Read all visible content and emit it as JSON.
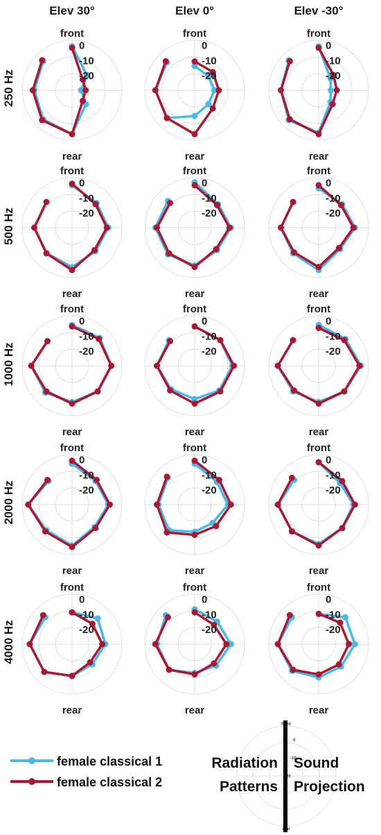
{
  "columns": [
    "Elev 30°",
    "Elev 0°",
    "Elev -30°"
  ],
  "rows": [
    "250 Hz",
    "500 Hz",
    "1000 Hz",
    "2000 Hz",
    "4000 Hz"
  ],
  "polar_labels": {
    "front": "front",
    "rear": "rear"
  },
  "ring_labels": [
    "0",
    "-10",
    "-20"
  ],
  "legend": {
    "items": [
      {
        "label": "female classical 1",
        "color": "#4db8e8"
      },
      {
        "label": "female classical 2",
        "color": "#a51a35"
      }
    ]
  },
  "captions": {
    "left": [
      "Radiation",
      "Patterns"
    ],
    "right": [
      "Sound",
      "Projection"
    ]
  },
  "chart_data": {
    "type": "polar-line",
    "angles_deg": [
      0,
      45,
      90,
      135,
      180,
      225,
      270,
      315
    ],
    "angle_labels": {
      "0": "front",
      "180": "rear"
    },
    "r_ticks": [
      0,
      -10,
      -20
    ],
    "r_range": [
      -30,
      3
    ],
    "series_names": [
      "female classical 1",
      "female classical 2"
    ],
    "panels": [
      {
        "row": "250 Hz",
        "column": "Elev 30°",
        "series": [
          [
            -1,
            -16,
            -24,
            -17,
            -1,
            -3,
            -5,
            -3
          ],
          [
            -2,
            -20,
            -21,
            -20,
            -1,
            -2,
            -4,
            -2
          ]
        ]
      },
      {
        "row": "250 Hz",
        "column": "Elev 0°",
        "series": [
          [
            -14,
            -17,
            -17,
            -17,
            -13,
            -4,
            -4,
            -4
          ],
          [
            -11,
            -13,
            -14,
            -13,
            -1,
            -4,
            -4,
            -3
          ]
        ]
      },
      {
        "row": "250 Hz",
        "column": "Elev -30°",
        "series": [
          [
            -1,
            -19,
            -22,
            -19,
            -2,
            -2,
            -5,
            -2
          ],
          [
            -2,
            -16,
            -18,
            -17,
            -1,
            -3,
            -5,
            -3
          ]
        ]
      },
      {
        "row": "500 Hz",
        "column": "Elev 30°",
        "series": [
          [
            -2,
            -7,
            -6,
            -8,
            -4,
            -6,
            -5,
            -6
          ],
          [
            -1,
            -8,
            -7,
            -9,
            -2,
            -6,
            -5,
            -6
          ]
        ]
      },
      {
        "row": "500 Hz",
        "column": "Elev 0°",
        "series": [
          [
            0,
            -8,
            -6,
            -9,
            -5,
            -5,
            -4,
            -5
          ],
          [
            -2,
            -9,
            -7,
            -10,
            -4,
            -6,
            -5,
            -7
          ]
        ]
      },
      {
        "row": "500 Hz",
        "column": "Elev -30°",
        "series": [
          [
            -4,
            -8,
            -6,
            -10,
            -2,
            -6,
            -5,
            -6
          ],
          [
            -2,
            -9,
            -7,
            -11,
            -4,
            -7,
            -5,
            -6
          ]
        ]
      },
      {
        "row": "1000 Hz",
        "column": "Elev 30°",
        "series": [
          [
            -3,
            -4,
            -4,
            -6,
            -6,
            -5,
            -3,
            -7
          ],
          [
            -4,
            -5,
            -4,
            -6,
            -5,
            -6,
            -3,
            -7
          ]
        ]
      },
      {
        "row": "1000 Hz",
        "column": "Elev 0°",
        "series": [
          [
            -4,
            -6,
            -5,
            -7,
            -8,
            -8,
            -5,
            -6
          ],
          [
            -4,
            -6,
            -4,
            -6,
            -5,
            -7,
            -5,
            -7
          ]
        ]
      },
      {
        "row": "1000 Hz",
        "column": "Elev -30°",
        "series": [
          [
            -3,
            -5,
            -2,
            -6,
            -6,
            -6,
            -3,
            -6
          ],
          [
            -5,
            -6,
            -3,
            -6,
            -5,
            -7,
            -3,
            -6
          ]
        ]
      },
      {
        "row": "2000 Hz",
        "column": "Elev 30°",
        "series": [
          [
            -3,
            -8,
            -6,
            -9,
            -3,
            -6,
            -1,
            -8
          ],
          [
            -1,
            -7,
            -5,
            -8,
            -2,
            -5,
            -1,
            -7
          ]
        ]
      },
      {
        "row": "2000 Hz",
        "column": "Elev 0°",
        "series": [
          [
            -3,
            -9,
            -8,
            -13,
            -12,
            -6,
            -6,
            -5
          ],
          [
            -1,
            -7,
            -6,
            -10,
            -10,
            -4,
            -5,
            -4
          ]
        ]
      },
      {
        "row": "2000 Hz",
        "column": "Elev -30°",
        "series": [
          [
            -2,
            -10,
            -7,
            -8,
            -4,
            -5,
            -3,
            -7
          ],
          [
            -2,
            -8,
            -6,
            -8,
            -3,
            -5,
            -3,
            -5
          ]
        ]
      },
      {
        "row": "4000 Hz",
        "column": "Elev 30°",
        "series": [
          [
            -9,
            -6,
            -8,
            -11,
            -9,
            -4,
            -2,
            -5
          ],
          [
            -9,
            -11,
            -10,
            -13,
            -9,
            -4,
            -2,
            -3
          ]
        ]
      },
      {
        "row": "4000 Hz",
        "column": "Elev 0°",
        "series": [
          [
            -7,
            -9,
            -6,
            -10,
            -11,
            -6,
            -5,
            -3
          ],
          [
            -9,
            -12,
            -9,
            -12,
            -10,
            -6,
            -4,
            -5
          ]
        ]
      },
      {
        "row": "4000 Hz",
        "column": "Elev -30°",
        "series": [
          [
            -10,
            -5,
            -6,
            -9,
            -8,
            -5,
            -3,
            -5
          ],
          [
            -10,
            -10,
            -10,
            -11,
            -10,
            -6,
            -3,
            -3
          ]
        ]
      }
    ]
  }
}
